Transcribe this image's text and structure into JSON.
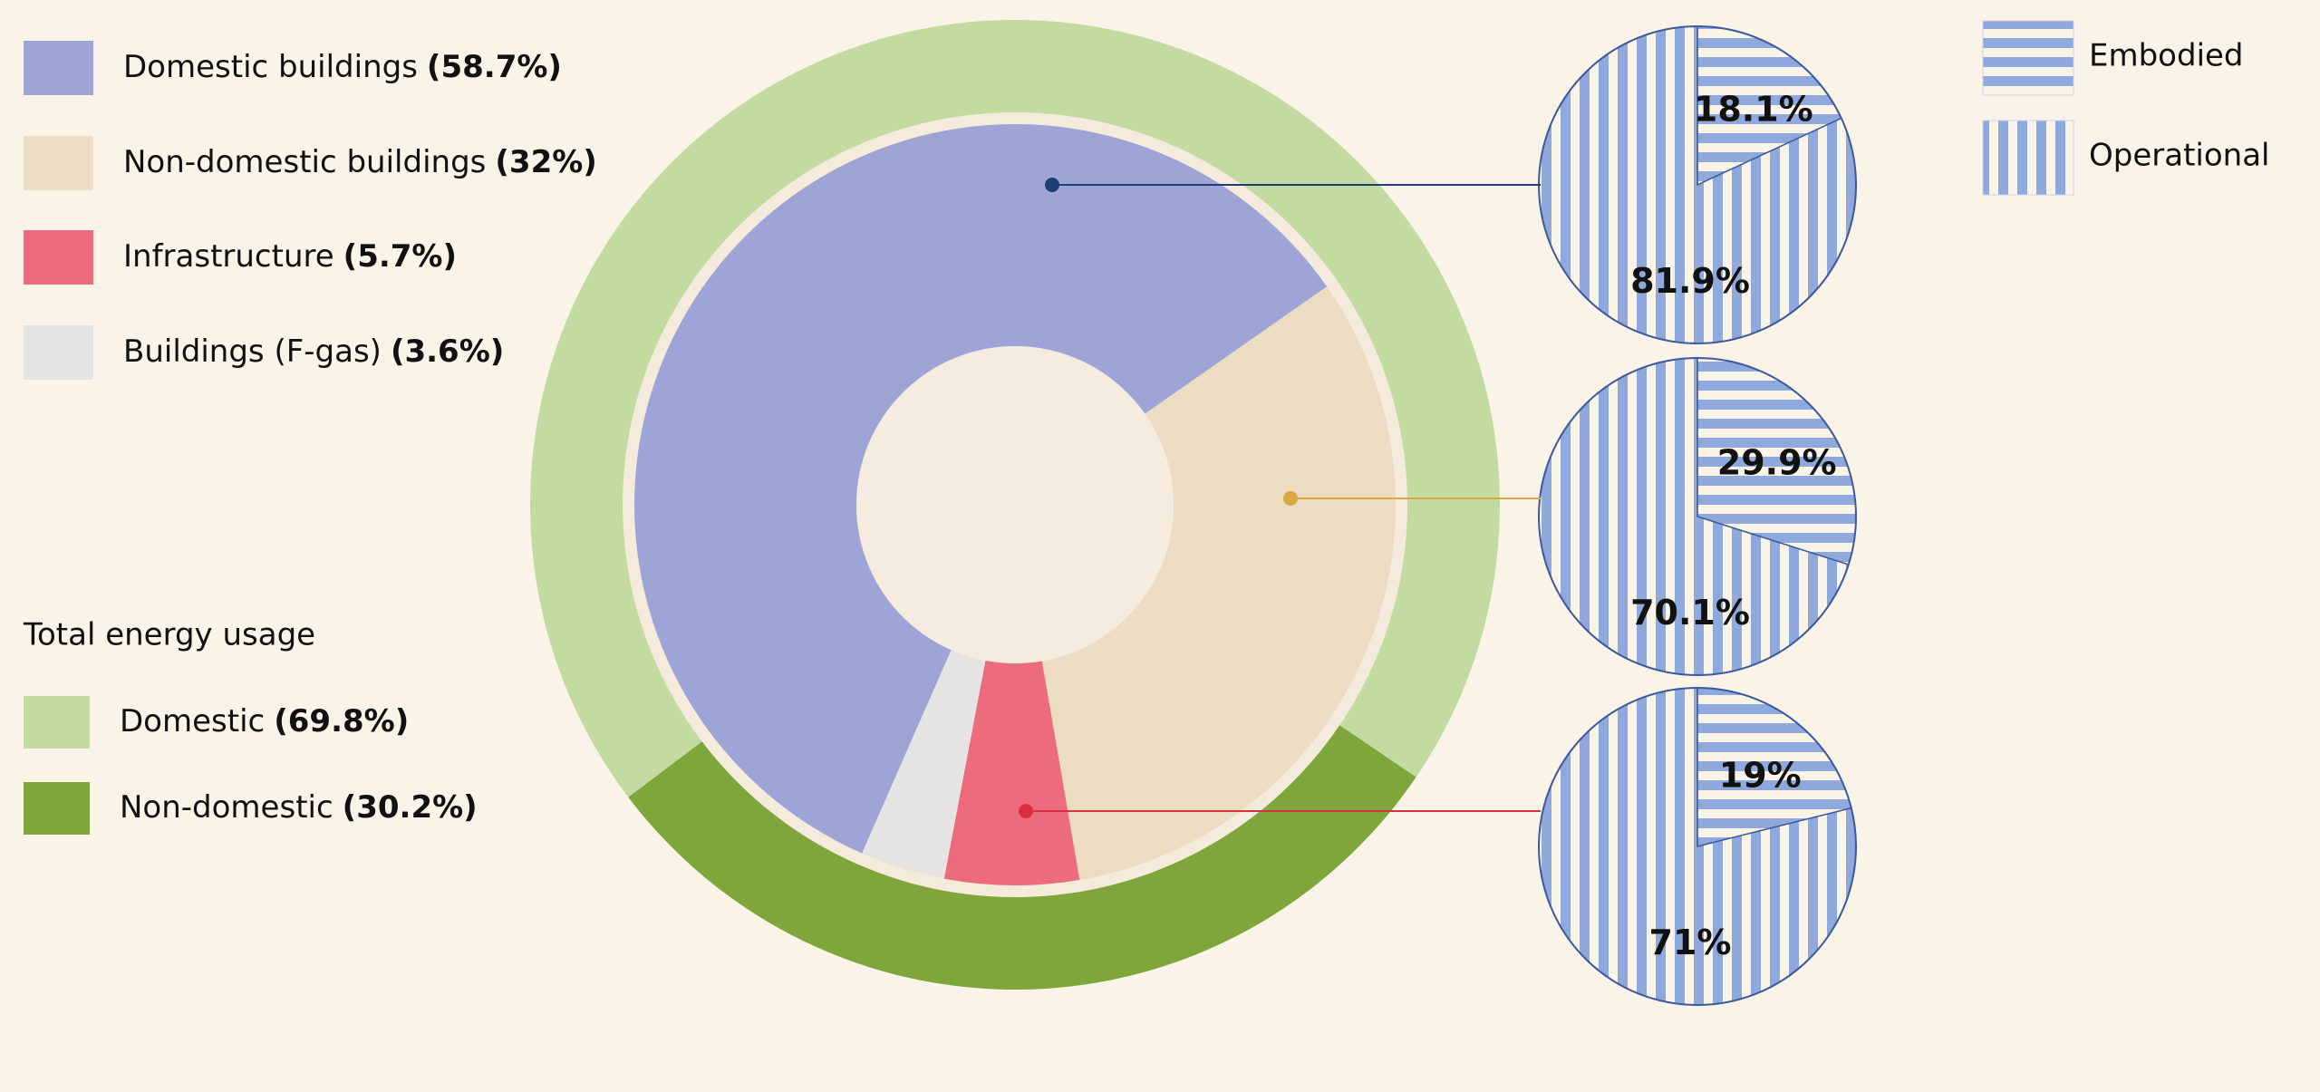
{
  "chart_data": [
    {
      "type": "donut",
      "categories": [
        "Domestic buildings",
        "Non-domestic buildings",
        "Infrastructure",
        "Buildings (F-gas)"
      ],
      "values": [
        58.7,
        32,
        5.7,
        3.6
      ],
      "value_labels": [
        "(58.7%)",
        "(32%)",
        "(5.7%)",
        "(3.6%)"
      ],
      "colors": [
        "#9ea5d6",
        "#ecdcc1",
        "#ec6b7d",
        "#e6e4e2"
      ]
    },
    {
      "type": "donut",
      "title": "Total energy usage",
      "categories": [
        "Domestic",
        "Non-domestic"
      ],
      "values": [
        69.8,
        30.2
      ],
      "value_labels": [
        "(69.8%)",
        "(30.2%)"
      ],
      "colors": [
        "#c3dba0",
        "#7ea63b"
      ]
    },
    {
      "type": "pie",
      "categories": [
        "Embodied",
        "Operational"
      ],
      "color": "#8fa9dc",
      "series": [
        {
          "values": [
            18.1,
            81.9
          ],
          "value_labels": [
            "18.1%",
            "81.9%"
          ]
        },
        {
          "values": [
            29.9,
            70.1
          ],
          "value_labels": [
            "29.9%",
            "70.1%"
          ]
        },
        {
          "values": [
            19,
            71
          ],
          "value_labels": [
            "19%",
            "71%"
          ]
        }
      ]
    }
  ]
}
